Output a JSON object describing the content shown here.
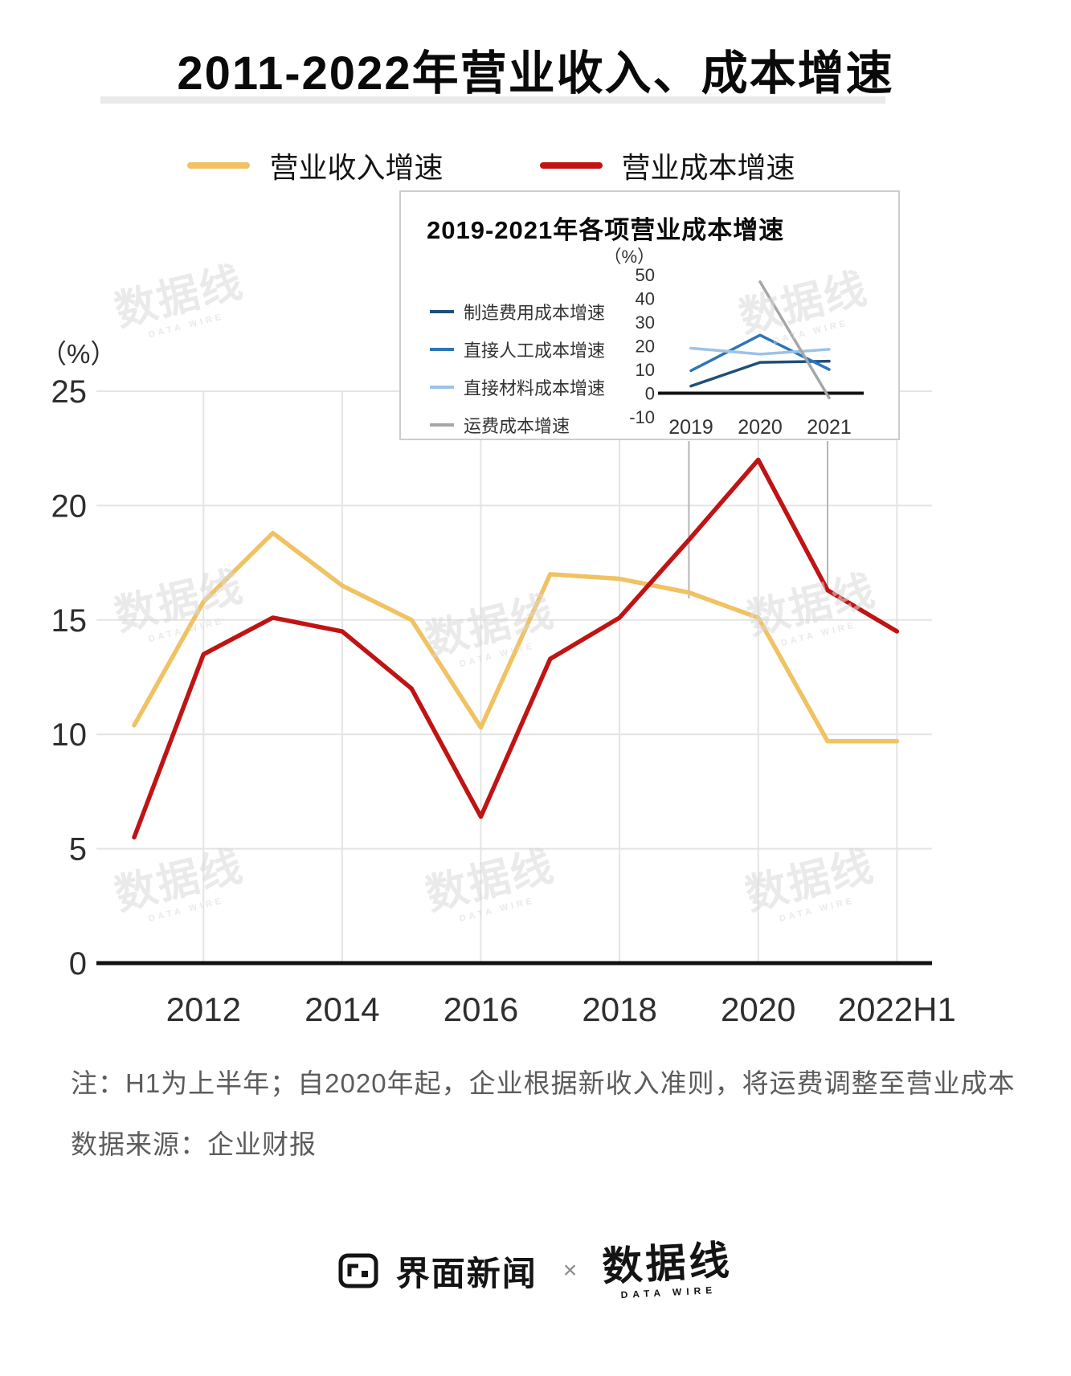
{
  "chart_data": [
    {
      "type": "line",
      "title": "2011-2022年营业收入、成本增速",
      "unit_label": "（%）",
      "x": [
        "2011",
        "2012",
        "2013",
        "2014",
        "2015",
        "2016",
        "2017",
        "2018",
        "2019",
        "2020",
        "2021",
        "2022H1"
      ],
      "x_tick_labels": [
        "2012",
        "2014",
        "2016",
        "2018",
        "2020",
        "2022H1"
      ],
      "ylim": [
        0,
        25
      ],
      "yticks": [
        0,
        5,
        10,
        15,
        20,
        25
      ],
      "grid": true,
      "legend_position": "top",
      "series": [
        {
          "name": "营业收入增速",
          "color_key": "revenue",
          "values": [
            10.4,
            15.8,
            18.8,
            16.5,
            15.0,
            10.3,
            17.0,
            16.8,
            16.2,
            15.1,
            9.7,
            9.7
          ]
        },
        {
          "name": "营业成本增速",
          "color_key": "cost",
          "values": [
            5.5,
            13.5,
            15.1,
            14.5,
            12.0,
            6.4,
            13.3,
            15.1,
            18.5,
            22.0,
            16.3,
            14.5
          ]
        }
      ]
    },
    {
      "type": "line",
      "title": "2019-2021年各项营业成本增速",
      "unit_label": "（%）",
      "x": [
        "2019",
        "2020",
        "2021"
      ],
      "ylim": [
        -10,
        50
      ],
      "yticks": [
        -10,
        0,
        10,
        20,
        30,
        40,
        50
      ],
      "grid": false,
      "legend_position": "left",
      "series": [
        {
          "name": "制造费用成本增速",
          "color_key": "mfg",
          "values": [
            3,
            13,
            13.5
          ]
        },
        {
          "name": "直接人工成本增速",
          "color_key": "labor",
          "values": [
            9.5,
            24.5,
            10
          ]
        },
        {
          "name": "直接材料成本增速",
          "color_key": "material",
          "values": [
            19,
            16.5,
            18.5
          ]
        },
        {
          "name": "运费成本增速",
          "color_key": "freight",
          "values": [
            null,
            47,
            -2
          ]
        }
      ]
    }
  ],
  "colors": {
    "revenue": "#F0C262",
    "cost": "#C01414",
    "mfg": "#1F4E79",
    "labor": "#2E75B6",
    "material": "#9DC3E6",
    "freight": "#A6A6A6",
    "grid": "#E4E4E4",
    "axis": "#111111",
    "connector": "#B5B5B5"
  },
  "notes": {
    "line1": "注：H1为上半年；自2020年起，企业根据新收入准则，将运费调整至营业成本",
    "line2": "数据来源：企业财报"
  },
  "footer": {
    "brand1": "界面新闻",
    "separator": "×",
    "brand2": "数据线",
    "brand2_sub": "DATA WIRE"
  },
  "watermark": {
    "text": "数据线",
    "sub": "DATA WIRE"
  }
}
